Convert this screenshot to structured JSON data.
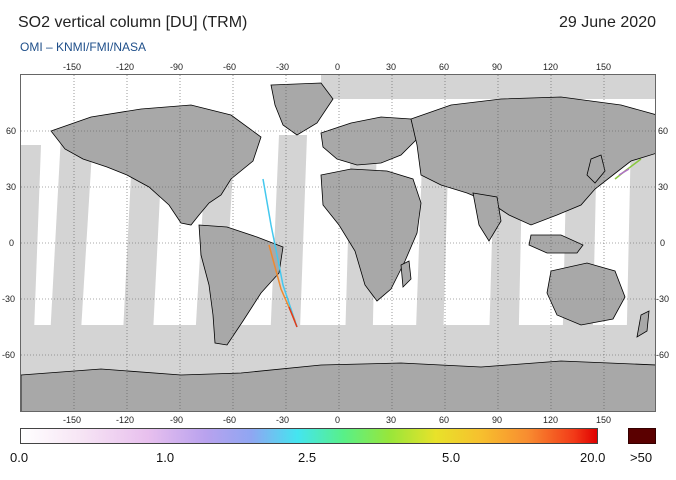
{
  "header": {
    "title": "SO2 vertical column [DU] (TRM)",
    "date": "29 June 2020",
    "credit": "OMI  –  KNMI/FMI/NASA"
  },
  "map": {
    "lon_ticks": [
      "-150",
      "-120",
      "-90",
      "-60",
      "-30",
      "0",
      "30",
      "60",
      "90",
      "120",
      "150"
    ],
    "lat_ticks": [
      "60",
      "30",
      "0",
      "-30",
      "-60"
    ],
    "lon_range": [
      -180,
      180
    ],
    "lat_range": [
      -90,
      90
    ],
    "grid": "dotted",
    "colors": {
      "ocean": "#ffffff",
      "land_mask": "#a8a8a8",
      "swath_gap": "#d4d4d4",
      "coast": "#000000"
    }
  },
  "colorbar": {
    "labels": [
      "0.0",
      "1.0",
      "2.5",
      "5.0",
      "20.0"
    ],
    "over_label": ">50",
    "over_color": "#5a0000"
  }
}
